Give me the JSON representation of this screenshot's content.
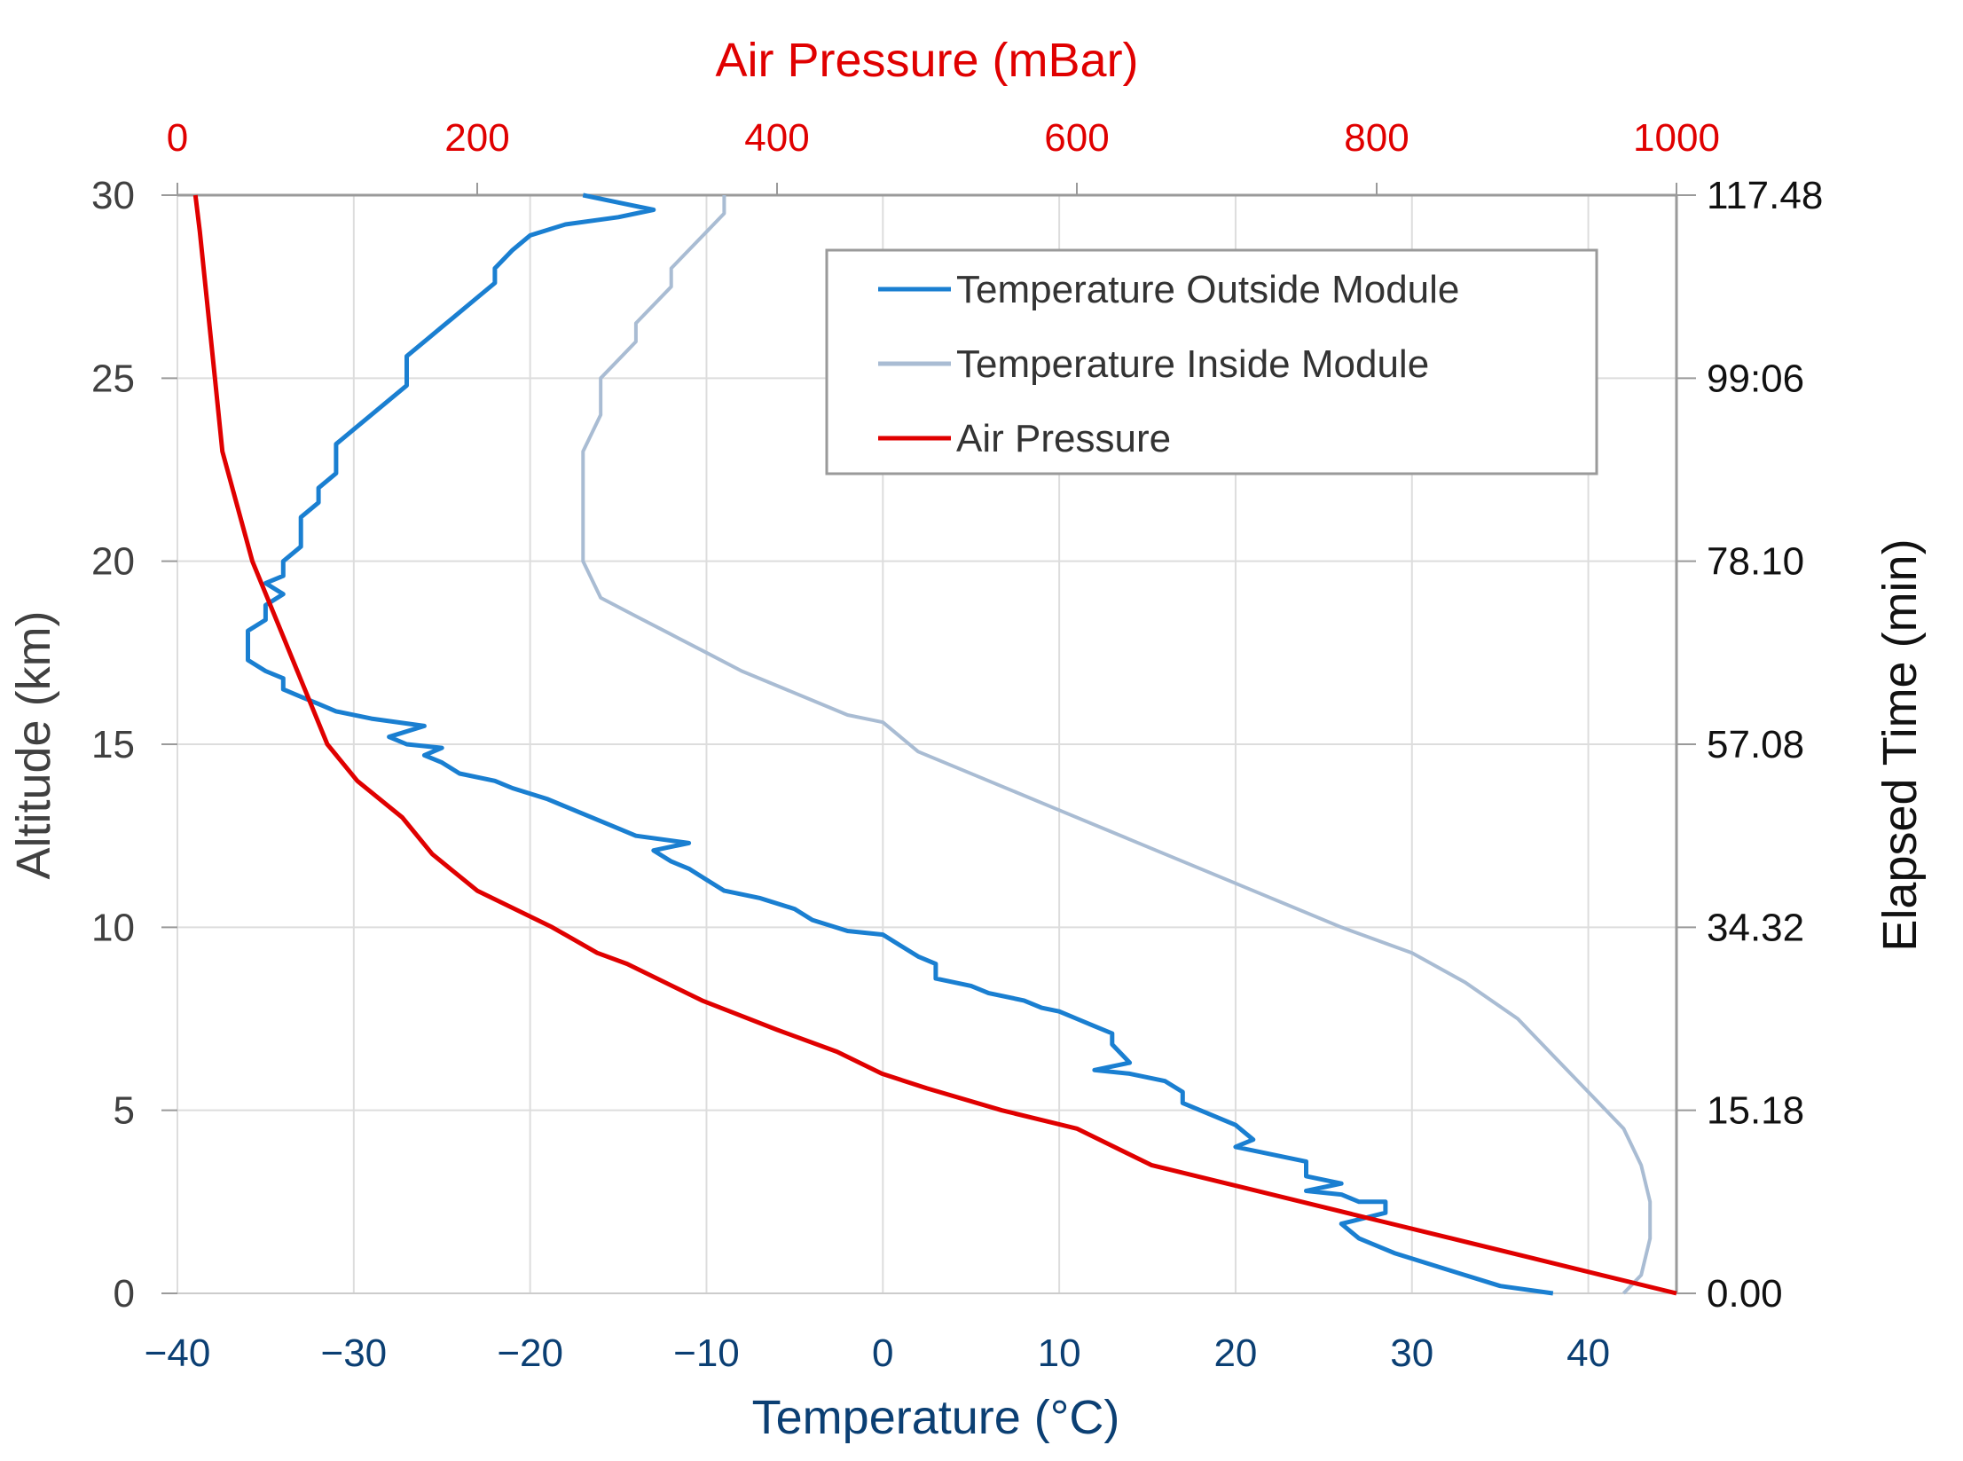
{
  "chart_data": {
    "type": "line",
    "title": "",
    "colors": {
      "pressure": "#e00000",
      "temp_outside": "#1a7fd1",
      "temp_inside": "#a9bcd3",
      "temp_axis": "#0b3f73",
      "alt_axis": "#404040",
      "time_axis": "#111111",
      "grid": "#dddddd"
    },
    "axes": {
      "y_left": {
        "label": "Altitude (km)",
        "range": [
          0,
          30
        ],
        "ticks": [
          "0",
          "5",
          "10",
          "15",
          "20",
          "25",
          "30"
        ]
      },
      "y_right": {
        "label": "Elapsed Time (min)",
        "ticks": [
          {
            "alt": 0,
            "label": "0.00"
          },
          {
            "alt": 5,
            "label": "15.18"
          },
          {
            "alt": 10,
            "label": "34.32"
          },
          {
            "alt": 15,
            "label": "57.08"
          },
          {
            "alt": 20,
            "label": "78.10"
          },
          {
            "alt": 25,
            "label": "99:06"
          },
          {
            "alt": 30,
            "label": "117.48"
          }
        ]
      },
      "x_bottom": {
        "label": "Temperature (°C)",
        "range": [
          -40,
          45
        ],
        "ticks": [
          {
            "value": -40,
            "label": "−40"
          },
          {
            "value": -30,
            "label": "−30"
          },
          {
            "value": -20,
            "label": "−20"
          },
          {
            "value": -10,
            "label": "−10"
          },
          {
            "value": 0,
            "label": "0"
          },
          {
            "value": 10,
            "label": "10"
          },
          {
            "value": 20,
            "label": "20"
          },
          {
            "value": 30,
            "label": "30"
          },
          {
            "value": 40,
            "label": "40"
          }
        ]
      },
      "x_top": {
        "label": "Air Pressure (mBar)",
        "range": [
          0,
          1000
        ],
        "ticks": [
          {
            "value": 0,
            "label": "0"
          },
          {
            "value": 200,
            "label": "200"
          },
          {
            "value": 400,
            "label": "400"
          },
          {
            "value": 600,
            "label": "600"
          },
          {
            "value": 800,
            "label": "800"
          },
          {
            "value": 1000,
            "label": "1000"
          }
        ]
      }
    },
    "legend": {
      "position": "top-right",
      "entries": [
        "Temperature Outside Module",
        "Temperature Inside Module",
        "Air Pressure"
      ]
    },
    "series": [
      {
        "name": "Temperature Outside Module",
        "x_axis": "temperature",
        "points": [
          [
            38,
            0
          ],
          [
            35,
            0.2
          ],
          [
            33,
            0.5
          ],
          [
            31,
            0.8
          ],
          [
            29,
            1.1
          ],
          [
            27,
            1.5
          ],
          [
            26,
            1.9
          ],
          [
            28.5,
            2.2
          ],
          [
            28.5,
            2.5
          ],
          [
            27,
            2.5
          ],
          [
            26,
            2.7
          ],
          [
            24,
            2.8
          ],
          [
            26,
            3.0
          ],
          [
            24,
            3.2
          ],
          [
            24,
            3.6
          ],
          [
            22,
            3.8
          ],
          [
            20,
            4.0
          ],
          [
            21,
            4.2
          ],
          [
            20,
            4.6
          ],
          [
            18,
            5.0
          ],
          [
            17,
            5.2
          ],
          [
            17,
            5.5
          ],
          [
            16,
            5.8
          ],
          [
            14,
            6.0
          ],
          [
            12,
            6.1
          ],
          [
            14,
            6.3
          ],
          [
            13,
            6.8
          ],
          [
            13,
            7.1
          ],
          [
            12,
            7.3
          ],
          [
            11,
            7.5
          ],
          [
            10,
            7.7
          ],
          [
            9,
            7.8
          ],
          [
            8,
            8.0
          ],
          [
            6,
            8.2
          ],
          [
            5,
            8.4
          ],
          [
            3,
            8.6
          ],
          [
            3,
            9.0
          ],
          [
            2,
            9.2
          ],
          [
            1,
            9.5
          ],
          [
            0,
            9.8
          ],
          [
            -2,
            9.9
          ],
          [
            -4,
            10.2
          ],
          [
            -5,
            10.5
          ],
          [
            -7,
            10.8
          ],
          [
            -9,
            11.0
          ],
          [
            -10,
            11.3
          ],
          [
            -11,
            11.6
          ],
          [
            -12,
            11.8
          ],
          [
            -13,
            12.1
          ],
          [
            -11,
            12.3
          ],
          [
            -14,
            12.5
          ],
          [
            -15,
            12.7
          ],
          [
            -16,
            12.9
          ],
          [
            -17,
            13.1
          ],
          [
            -18,
            13.3
          ],
          [
            -19,
            13.5
          ],
          [
            -21,
            13.8
          ],
          [
            -22,
            14.0
          ],
          [
            -24,
            14.2
          ],
          [
            -25,
            14.5
          ],
          [
            -26,
            14.7
          ],
          [
            -25,
            14.9
          ],
          [
            -27,
            15.0
          ],
          [
            -28,
            15.2
          ],
          [
            -26,
            15.5
          ],
          [
            -29,
            15.7
          ],
          [
            -31,
            15.9
          ],
          [
            -32,
            16.1
          ],
          [
            -33,
            16.3
          ],
          [
            -34,
            16.5
          ],
          [
            -34,
            16.8
          ],
          [
            -35,
            17.0
          ],
          [
            -36,
            17.3
          ],
          [
            -36,
            17.7
          ],
          [
            -36,
            18.1
          ],
          [
            -35,
            18.4
          ],
          [
            -35,
            18.8
          ],
          [
            -34,
            19.1
          ],
          [
            -35,
            19.4
          ],
          [
            -34,
            19.6
          ],
          [
            -34,
            20.0
          ],
          [
            -33,
            20.4
          ],
          [
            -33,
            20.8
          ],
          [
            -33,
            21.2
          ],
          [
            -32,
            21.6
          ],
          [
            -32,
            22.0
          ],
          [
            -31,
            22.4
          ],
          [
            -31,
            22.8
          ],
          [
            -31,
            23.2
          ],
          [
            -30,
            23.6
          ],
          [
            -29,
            24.0
          ],
          [
            -28,
            24.4
          ],
          [
            -27,
            24.8
          ],
          [
            -27,
            25.2
          ],
          [
            -27,
            25.6
          ],
          [
            -26,
            26.0
          ],
          [
            -25,
            26.4
          ],
          [
            -24,
            26.8
          ],
          [
            -23,
            27.2
          ],
          [
            -22,
            27.6
          ],
          [
            -22,
            28.0
          ],
          [
            -21,
            28.5
          ],
          [
            -20,
            28.9
          ],
          [
            -18,
            29.2
          ],
          [
            -15,
            29.4
          ],
          [
            -13,
            29.6
          ],
          [
            -15,
            29.8
          ],
          [
            -17,
            30.0
          ]
        ]
      },
      {
        "name": "Temperature Inside Module",
        "x_axis": "temperature",
        "points": [
          [
            42,
            0
          ],
          [
            43,
            0.5
          ],
          [
            43.5,
            1.5
          ],
          [
            43.5,
            2.5
          ],
          [
            43,
            3.5
          ],
          [
            42,
            4.5
          ],
          [
            40,
            5.5
          ],
          [
            38,
            6.5
          ],
          [
            36,
            7.5
          ],
          [
            33,
            8.5
          ],
          [
            30,
            9.3
          ],
          [
            26,
            10.0
          ],
          [
            22,
            10.8
          ],
          [
            18,
            11.6
          ],
          [
            14,
            12.4
          ],
          [
            10,
            13.2
          ],
          [
            6,
            14.0
          ],
          [
            2,
            14.8
          ],
          [
            0,
            15.6
          ],
          [
            -2,
            15.8
          ],
          [
            -4,
            16.2
          ],
          [
            -6,
            16.6
          ],
          [
            -8,
            17.0
          ],
          [
            -10,
            17.5
          ],
          [
            -12,
            18.0
          ],
          [
            -14,
            18.5
          ],
          [
            -16,
            19.0
          ],
          [
            -17,
            20.0
          ],
          [
            -17,
            21.0
          ],
          [
            -17,
            22.0
          ],
          [
            -17,
            23.0
          ],
          [
            -16,
            24.0
          ],
          [
            -16,
            25.0
          ],
          [
            -15,
            25.5
          ],
          [
            -14,
            26.0
          ],
          [
            -14,
            26.5
          ],
          [
            -13,
            27.0
          ],
          [
            -12,
            27.5
          ],
          [
            -12,
            28.0
          ],
          [
            -11,
            28.5
          ],
          [
            -10,
            29.0
          ],
          [
            -9,
            29.5
          ],
          [
            -9,
            30.0
          ]
        ]
      },
      {
        "name": "Air Pressure",
        "x_axis": "pressure",
        "points": [
          [
            1000,
            0
          ],
          [
            950,
            0.5
          ],
          [
            900,
            1.0
          ],
          [
            850,
            1.5
          ],
          [
            800,
            2.0
          ],
          [
            750,
            2.5
          ],
          [
            700,
            3.0
          ],
          [
            650,
            3.5
          ],
          [
            600,
            4.5
          ],
          [
            550,
            5.0
          ],
          [
            500,
            5.6
          ],
          [
            470,
            6.0
          ],
          [
            440,
            6.6
          ],
          [
            400,
            7.2
          ],
          [
            350,
            8.0
          ],
          [
            300,
            9.0
          ],
          [
            280,
            9.3
          ],
          [
            250,
            10.0
          ],
          [
            200,
            11.0
          ],
          [
            170,
            12.0
          ],
          [
            150,
            13.0
          ],
          [
            120,
            14.0
          ],
          [
            100,
            15.0
          ],
          [
            90,
            16.0
          ],
          [
            80,
            17.0
          ],
          [
            70,
            18.0
          ],
          [
            60,
            19.0
          ],
          [
            50,
            20.0
          ],
          [
            40,
            21.5
          ],
          [
            30,
            23.0
          ],
          [
            25,
            25.0
          ],
          [
            20,
            27.0
          ],
          [
            15,
            29.0
          ],
          [
            12,
            30.0
          ]
        ]
      }
    ]
  }
}
